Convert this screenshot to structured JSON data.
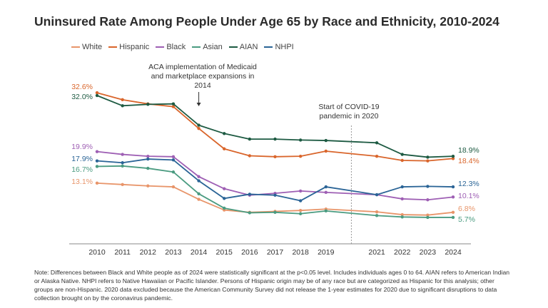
{
  "title": "Uninsured Rate Among People Under Age 65 by Race and Ethnicity, 2010-2024",
  "note": "Note: Differences between Black and White people as of 2024 were statistically significant at the p<0.05 level. Includes individuals ages 0 to 64. AIAN refers to American Indian or Alaska Native. NHPI refers to Native Hawaiian or Pacific Islander. Persons of Hispanic origin may be of any race but are categorized as Hispanic for this analysis; other groups are non-Hispanic. 2020 data excluded because the American Community Survey did not release the 1-year estimates for 2020 due to significant disruptions to data collection brought on by the coronavirus pandemic.",
  "chart_data": {
    "type": "line",
    "title": "Uninsured Rate Among People Under Age 65 by Race and Ethnicity, 2010-2024",
    "x": [
      2010,
      2011,
      2012,
      2013,
      2014,
      2015,
      2016,
      2017,
      2018,
      2019,
      2021,
      2022,
      2023,
      2024
    ],
    "ylim": [
      0,
      35
    ],
    "grid": false,
    "legend_position": "top-left",
    "series": [
      {
        "name": "White",
        "color": "#e8956a",
        "values": [
          13.1,
          12.8,
          12.5,
          12.3,
          9.6,
          7.3,
          6.8,
          7.0,
          7.2,
          7.5,
          6.9,
          6.3,
          6.2,
          6.8
        ],
        "start_label": "13.1%",
        "end_label": "6.8%"
      },
      {
        "name": "Hispanic",
        "color": "#d9652b",
        "values": [
          32.6,
          31.1,
          30.2,
          29.6,
          24.9,
          20.5,
          19.0,
          18.8,
          18.9,
          20.0,
          18.9,
          18.0,
          17.9,
          18.4
        ],
        "start_label": "32.6%",
        "end_label": "18.4%"
      },
      {
        "name": "Black",
        "color": "#9e5fb4",
        "values": [
          19.9,
          19.3,
          18.9,
          18.8,
          14.5,
          11.9,
          10.5,
          10.9,
          11.4,
          11.1,
          10.6,
          9.7,
          9.5,
          10.1
        ],
        "start_label": "19.9%",
        "end_label": "10.1%"
      },
      {
        "name": "Asian",
        "color": "#4a9b80",
        "values": [
          16.7,
          16.8,
          16.3,
          15.5,
          10.8,
          7.7,
          6.7,
          6.8,
          6.5,
          7.1,
          6.1,
          5.8,
          5.7,
          5.7
        ],
        "start_label": "16.7%",
        "end_label": "5.7%"
      },
      {
        "name": "AIAN",
        "color": "#1d5a42",
        "values": [
          32.0,
          29.8,
          30.1,
          30.2,
          25.6,
          23.8,
          22.6,
          22.6,
          22.4,
          22.3,
          21.8,
          19.3,
          18.7,
          18.9
        ],
        "start_label": "32.0%",
        "end_label": "18.9%"
      },
      {
        "name": "NHPI",
        "color": "#2a6496",
        "values": [
          17.9,
          17.5,
          18.3,
          18.1,
          13.6,
          9.8,
          10.7,
          10.5,
          9.3,
          12.3,
          10.6,
          12.3,
          12.4,
          12.3
        ],
        "start_label": "17.9%",
        "end_label": "12.3%"
      }
    ],
    "annotations": [
      {
        "text_lines": [
          "ACA implementation of Medicaid",
          "and marketplace expansions in",
          "2014"
        ],
        "x": 2014
      },
      {
        "text_lines": [
          "Start of COVID-19",
          "pandemic in 2020"
        ],
        "x": 2020
      }
    ]
  }
}
